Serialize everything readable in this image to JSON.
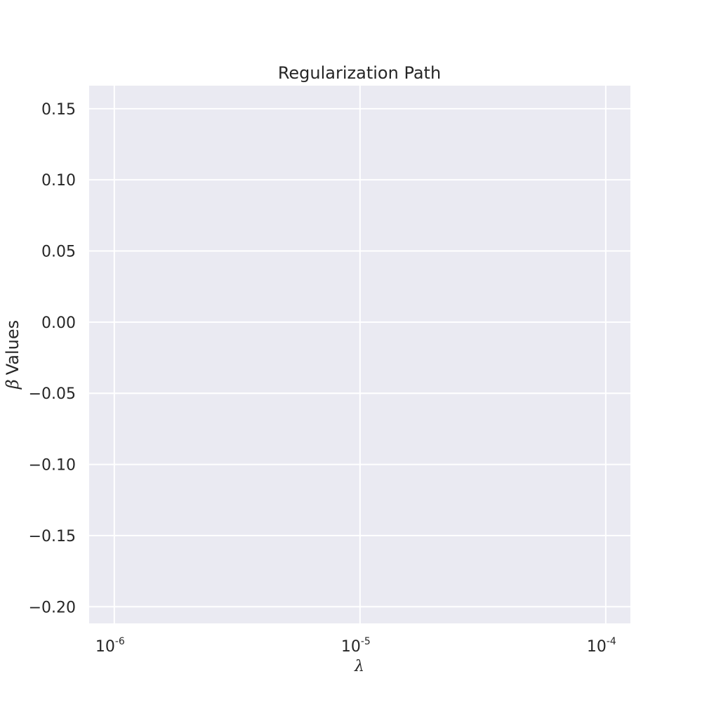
{
  "chart_data": {
    "type": "line",
    "title": "Regularization Path",
    "xlabel": "λ",
    "ylabel_symbol": "β",
    "ylabel_text": "Values",
    "x_scale": "log",
    "xlim": [
      7.9e-07,
      0.000126
    ],
    "ylim": [
      -0.2117,
      0.1662
    ],
    "x_ticks": [
      {
        "value": 1e-06,
        "base": "10",
        "exp": "-6"
      },
      {
        "value": 1e-05,
        "base": "10",
        "exp": "-5"
      },
      {
        "value": 0.0001,
        "base": "10",
        "exp": "-4"
      }
    ],
    "y_ticks": [
      {
        "value": 0.15,
        "label": "0.15"
      },
      {
        "value": 0.1,
        "label": "0.10"
      },
      {
        "value": 0.05,
        "label": "0.05"
      },
      {
        "value": 0.0,
        "label": "0.00"
      },
      {
        "value": -0.05,
        "label": "−0.05"
      },
      {
        "value": -0.1,
        "label": "−0.10"
      },
      {
        "value": -0.15,
        "label": "−0.15"
      },
      {
        "value": -0.2,
        "label": "−0.20"
      }
    ],
    "series": [],
    "grid": true,
    "colors": {
      "plot_bg": "#EAEAF2",
      "grid": "#FFFFFF",
      "text": "#262626"
    }
  }
}
